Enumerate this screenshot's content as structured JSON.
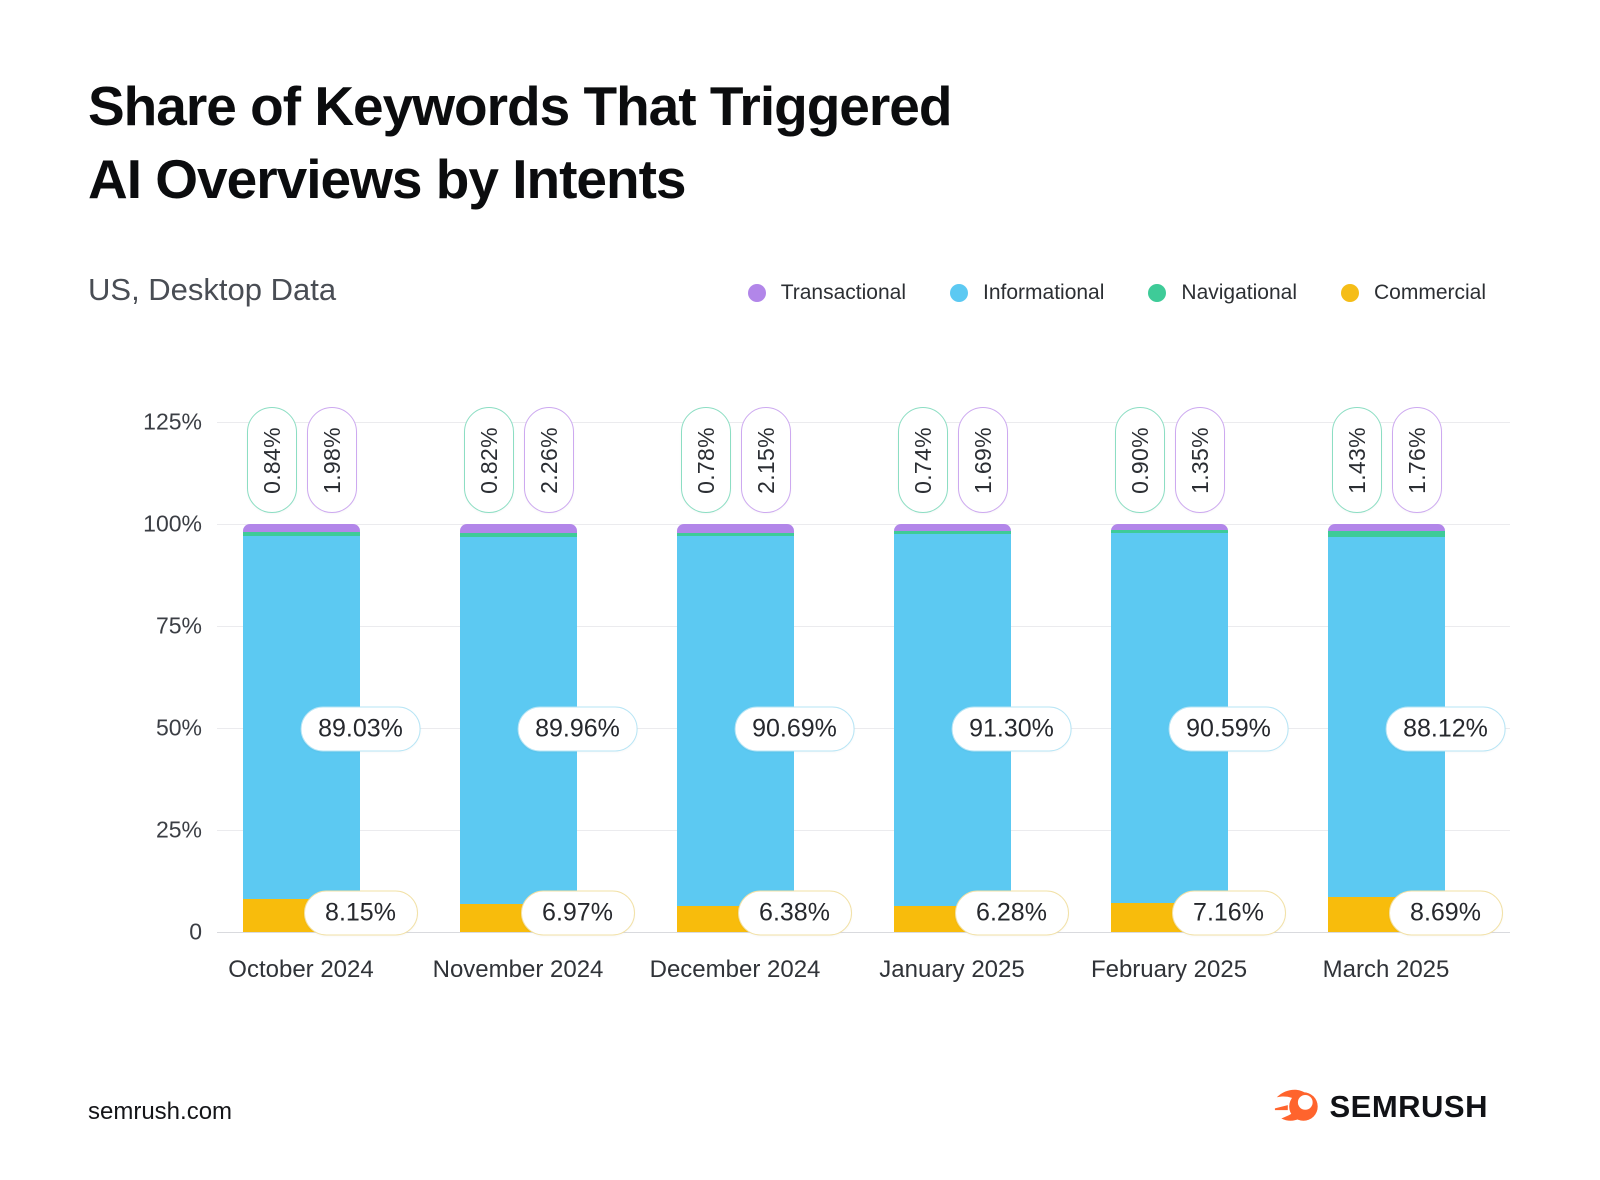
{
  "title": {
    "line1": "Share of Keywords That Triggered",
    "line2": "AI Overviews by Intents"
  },
  "subtitle": "US, Desktop Data",
  "legend": [
    {
      "label": "Transactional",
      "color": "#B286E9"
    },
    {
      "label": "Informational",
      "color": "#5CC9F2"
    },
    {
      "label": "Navigational",
      "color": "#3ECB98"
    },
    {
      "label": "Commercial",
      "color": "#F5BD17"
    }
  ],
  "chart_data": {
    "type": "bar",
    "stacked": true,
    "unit": "%",
    "title": "Share of Keywords That Triggered AI Overviews by Intents",
    "subtitle": "US, Desktop Data",
    "categories": [
      "October 2024",
      "November 2024",
      "December 2024",
      "January 2025",
      "February 2025",
      "March 2025"
    ],
    "series": [
      {
        "name": "Commercial",
        "color": "#F8BC0C",
        "pill_border": "#F2E1A6",
        "values": [
          8.15,
          6.97,
          6.38,
          6.28,
          7.16,
          8.69
        ],
        "labels": [
          "8.15%",
          "6.97%",
          "6.38%",
          "6.28%",
          "7.16%",
          "8.69%"
        ]
      },
      {
        "name": "Informational",
        "color": "#5CC9F2",
        "pill_border": "#B7E5F5",
        "values": [
          89.03,
          89.96,
          90.69,
          91.3,
          90.59,
          88.12
        ],
        "labels": [
          "89.03%",
          "89.96%",
          "90.69%",
          "91.30%",
          "90.59%",
          "88.12%"
        ]
      },
      {
        "name": "Navigational",
        "color": "#3ECB98",
        "pill_border": "#8CDEC3",
        "values": [
          0.84,
          0.82,
          0.78,
          0.74,
          0.9,
          1.43
        ],
        "labels": [
          "0.84%",
          "0.82%",
          "0.78%",
          "0.74%",
          "0.90%",
          "1.43%"
        ]
      },
      {
        "name": "Transactional",
        "color": "#B286E9",
        "pill_border": "#CDA9F0",
        "values": [
          1.98,
          2.26,
          2.15,
          1.69,
          1.35,
          1.76
        ],
        "labels": [
          "1.98%",
          "2.26%",
          "2.15%",
          "1.69%",
          "1.35%",
          "1.76%"
        ]
      }
    ],
    "yticks": [
      {
        "value": 125,
        "label": "125%"
      },
      {
        "value": 100,
        "label": "100%"
      },
      {
        "value": 75,
        "label": "75%"
      },
      {
        "value": 50,
        "label": "50%"
      },
      {
        "value": 25,
        "label": "25%"
      },
      {
        "value": 0,
        "label": "0"
      }
    ],
    "ylim": [
      0,
      125
    ],
    "grid": "horizontal",
    "legend_position": "top-right"
  },
  "footer": {
    "site": "semrush.com",
    "brand": "SEMRUSH",
    "brand_color": "#FF642D"
  }
}
